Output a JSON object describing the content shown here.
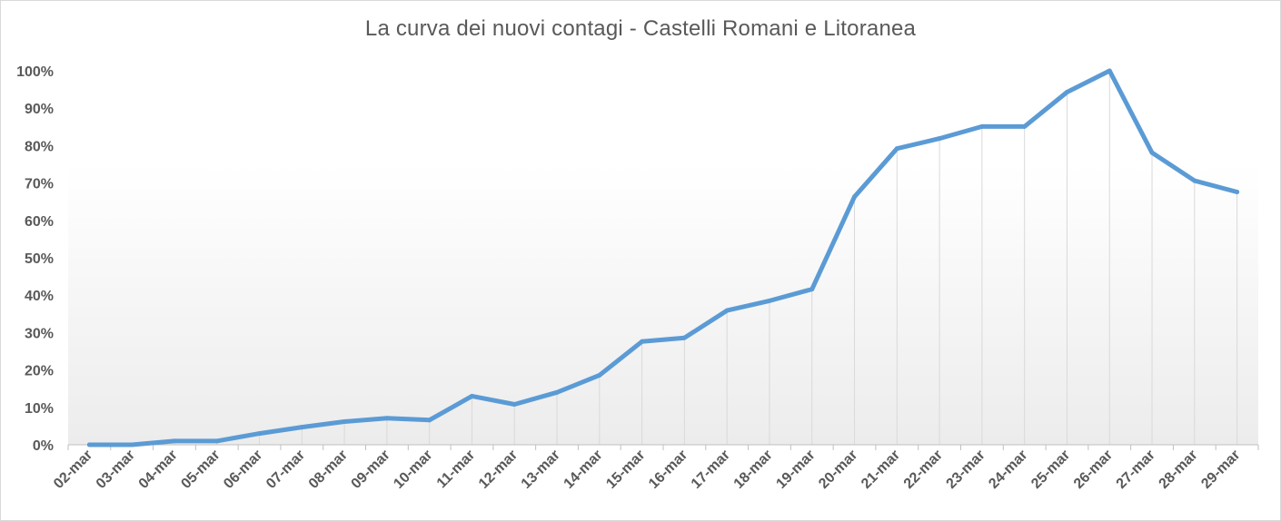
{
  "chart_data": {
    "type": "line",
    "title": "La curva dei nuovi contagi - Castelli Romani e Litoranea",
    "xlabel": "",
    "ylabel": "",
    "categories": [
      "02-mar",
      "03-mar",
      "04-mar",
      "05-mar",
      "06-mar",
      "07-mar",
      "08-mar",
      "09-mar",
      "10-mar",
      "11-mar",
      "12-mar",
      "13-mar",
      "14-mar",
      "15-mar",
      "16-mar",
      "17-mar",
      "18-mar",
      "19-mar",
      "20-mar",
      "21-mar",
      "22-mar",
      "23-mar",
      "24-mar",
      "25-mar",
      "26-mar",
      "27-mar",
      "28-mar",
      "29-mar"
    ],
    "series": [
      {
        "values": [
          0,
          0,
          1,
          1,
          3,
          4.7,
          6.2,
          7.1,
          6.6,
          13,
          10.8,
          14,
          18.6,
          27.6,
          28.6,
          35.9,
          38.5,
          41.6,
          66.3,
          79.2,
          81.9,
          85.1,
          85.1,
          94.3,
          100,
          78.1,
          70.6,
          67.6
        ],
        "color": "#5b9bd5"
      }
    ],
    "ylim": [
      0,
      100
    ],
    "yticks": [
      "0%",
      "10%",
      "20%",
      "30%",
      "40%",
      "50%",
      "60%",
      "70%",
      "80%",
      "90%",
      "100%"
    ],
    "grid": "vertical drop lines",
    "legend": "none"
  }
}
